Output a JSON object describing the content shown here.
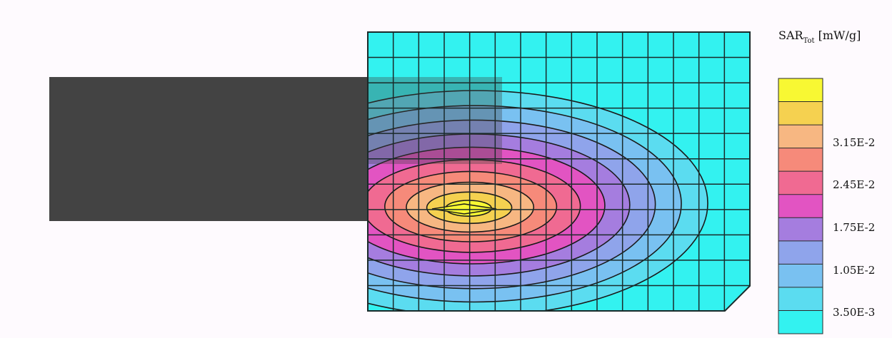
{
  "chart_data": {
    "type": "heatmap",
    "title": "",
    "legend": {
      "title_main": "SAR",
      "title_sub": "Tot",
      "unit": "[mW/g]",
      "placement": "right",
      "tick_labels": [
        "3.15E-2",
        "2.45E-2",
        "1.75E-2",
        "1.05E-2",
        "3.50E-3"
      ],
      "tick_values": [
        0.0315,
        0.0245,
        0.0175,
        0.0105,
        0.0035
      ],
      "levels_top_to_bottom": [
        0.042,
        0.0385,
        0.035,
        0.0315,
        0.028,
        0.0245,
        0.021,
        0.0175,
        0.014,
        0.0105,
        0.007,
        0.0035,
        0.0
      ],
      "band_colors_top_to_bottom": [
        "#f8f833",
        "#f5d150",
        "#f7b782",
        "#f68a7a",
        "#f06a92",
        "#e254c2",
        "#a57ddf",
        "#8fa4eb",
        "#79c1f1",
        "#5bdcf0",
        "#33f2f0"
      ]
    },
    "grid": {
      "cols": 15,
      "rows": 11,
      "gridlines": true
    },
    "contour_levels_mW_per_g": [
      0.0035,
      0.007,
      0.0105,
      0.014,
      0.0175,
      0.021,
      0.0245,
      0.028,
      0.0315,
      0.035,
      0.0385
    ],
    "peak_value_mW_per_g": 0.039,
    "colors": {
      "background": "#fefafe",
      "device_body": "#434343",
      "low_field": "#33f2f0",
      "grid_line": "#1a2a2a",
      "contour_line": "#1a1a1a"
    }
  }
}
